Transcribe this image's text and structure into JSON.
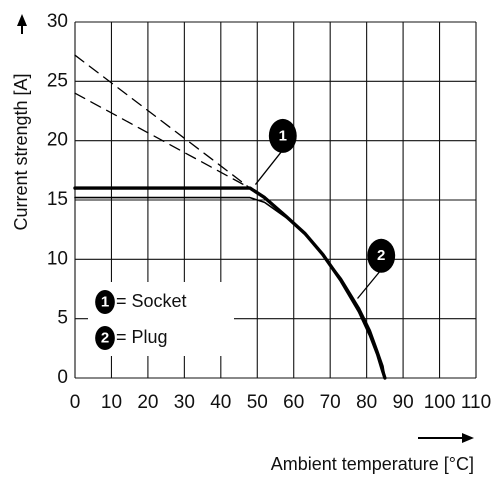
{
  "chart_data": {
    "type": "line",
    "title": "",
    "xlabel": "Ambient temperature [°C]",
    "ylabel": "Current strength [A]",
    "xlim": [
      0,
      110
    ],
    "ylim": [
      0,
      30
    ],
    "x_ticks": [
      0,
      10,
      20,
      30,
      40,
      50,
      60,
      70,
      80,
      90,
      100,
      110
    ],
    "y_ticks": [
      0,
      5,
      10,
      15,
      20,
      25,
      30
    ],
    "x_tick_labels": [
      "0",
      "10",
      "20",
      "30",
      "40",
      "50",
      "60",
      "70",
      "80",
      "90",
      "100",
      "110"
    ],
    "y_tick_labels": [
      "0",
      "5",
      "10",
      "15",
      "20",
      "25",
      "30"
    ],
    "grid": true,
    "series": [
      {
        "marker": "1",
        "name": "Socket",
        "style": "solid",
        "width": "thick",
        "points": [
          [
            0,
            16
          ],
          [
            48,
            16
          ],
          [
            52,
            15.2
          ],
          [
            58,
            13.6
          ],
          [
            63,
            12.2
          ],
          [
            68,
            10.4
          ],
          [
            73,
            8.2
          ],
          [
            78,
            5.6
          ],
          [
            81,
            3.6
          ],
          [
            83,
            2.0
          ],
          [
            84.2,
            0.8
          ],
          [
            85,
            0
          ]
        ]
      },
      {
        "marker": "2",
        "name": "Plug",
        "style": "solid",
        "width": "thin",
        "points": [
          [
            0,
            15.2
          ],
          [
            48,
            15.2
          ],
          [
            52,
            14.8
          ],
          [
            58,
            13.5
          ],
          [
            63,
            12.1
          ],
          [
            68,
            10.4
          ],
          [
            73,
            8.4
          ],
          [
            78,
            5.9
          ],
          [
            81,
            4.0
          ],
          [
            83,
            2.3
          ],
          [
            84.5,
            1.0
          ],
          [
            85,
            0
          ]
        ]
      },
      {
        "style": "dashed",
        "points": [
          [
            0,
            27.2
          ],
          [
            48,
            16
          ]
        ]
      },
      {
        "style": "dashed",
        "points": [
          [
            0,
            24
          ],
          [
            48,
            16
          ]
        ]
      }
    ],
    "markers": [
      {
        "label": "1",
        "x": 57,
        "y": 20.4,
        "leader_to": [
          49.5,
          16.3
        ]
      },
      {
        "label": "2",
        "x": 84,
        "y": 10.3,
        "leader_to": [
          77.5,
          6.7
        ]
      }
    ],
    "legend": {
      "position": "lower-left",
      "items": [
        {
          "marker": "1",
          "text": "= Socket"
        },
        {
          "marker": "2",
          "text": "= Plug"
        }
      ]
    },
    "colors": {
      "line": "#000000",
      "grid": "#111111",
      "marker_fill": "#000000",
      "background": "#ffffff"
    }
  }
}
